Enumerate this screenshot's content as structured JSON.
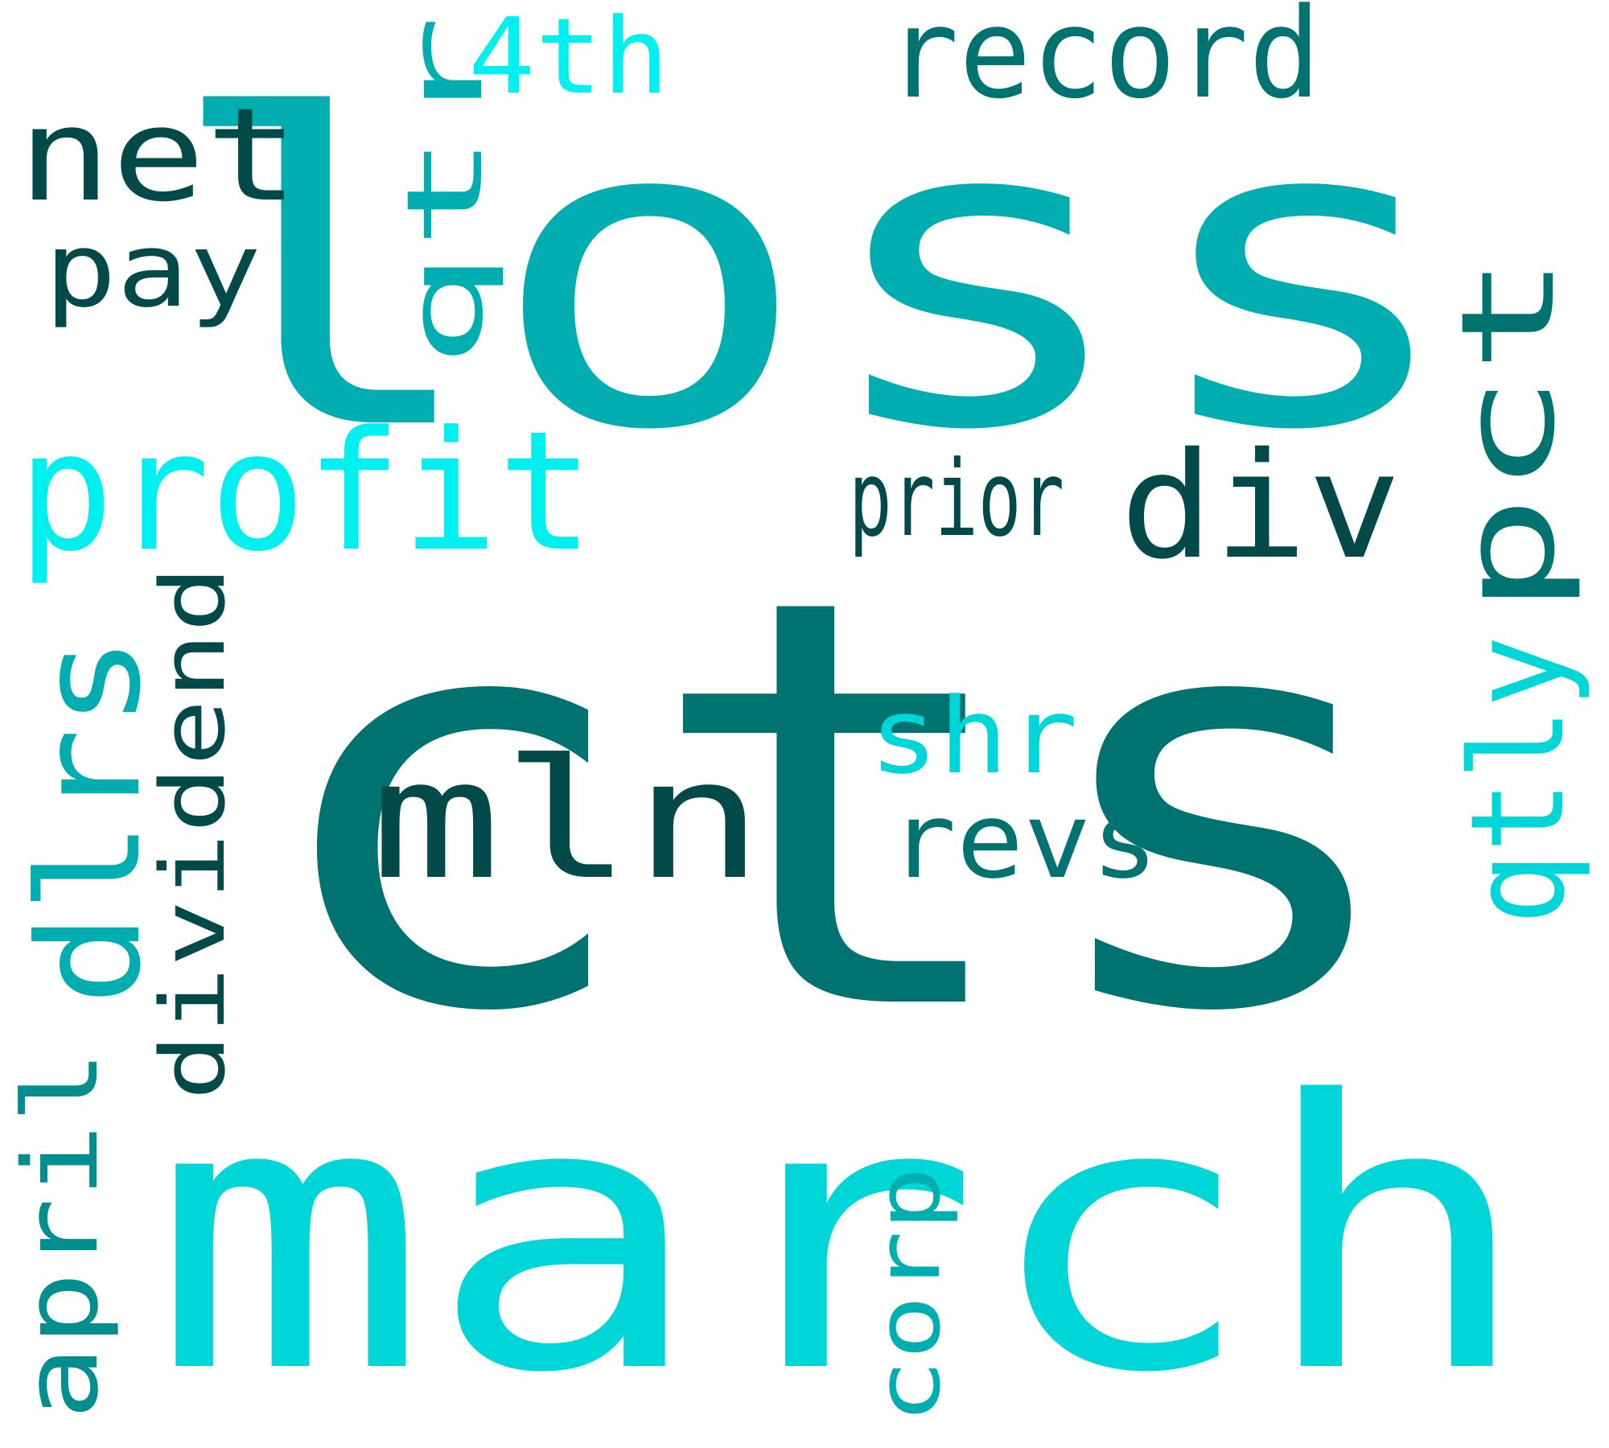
{
  "words": [
    {
      "id": "cts",
      "text": "cts",
      "color": "#007370"
    },
    {
      "id": "loss",
      "text": "loss",
      "color": "#00ADB0"
    },
    {
      "id": "march",
      "text": "march",
      "color": "#00D5D8"
    },
    {
      "id": "mln",
      "text": "mln",
      "color": "#024A4A"
    },
    {
      "id": "profit",
      "text": "profit",
      "color": "#00F0F0"
    },
    {
      "id": "net",
      "text": "net",
      "color": "#024A4A"
    },
    {
      "id": "record",
      "text": "record",
      "color": "#007370"
    },
    {
      "id": "4th",
      "text": "4th",
      "color": "#00F0F0"
    },
    {
      "id": "pay",
      "text": "pay",
      "color": "#024A4A"
    },
    {
      "id": "prior",
      "text": "prior",
      "color": "#024A4A"
    },
    {
      "id": "div",
      "text": "div",
      "color": "#024A4A"
    },
    {
      "id": "shr",
      "text": "shr",
      "color": "#00D5D8"
    },
    {
      "id": "revs",
      "text": "revs",
      "color": "#007370"
    },
    {
      "id": "qtr",
      "text": "qtr",
      "color": "#00ADB0"
    },
    {
      "id": "pct",
      "text": "pct",
      "color": "#007370"
    },
    {
      "id": "qtly",
      "text": "qtly",
      "color": "#00D5D8"
    },
    {
      "id": "dlrs",
      "text": "dlrs",
      "color": "#00ADB0"
    },
    {
      "id": "dividend",
      "text": "dividend",
      "color": "#024A4A"
    },
    {
      "id": "april",
      "text": "april",
      "color": "#008E8E"
    },
    {
      "id": "corp",
      "text": "corp",
      "color": "#00ADB0"
    }
  ]
}
